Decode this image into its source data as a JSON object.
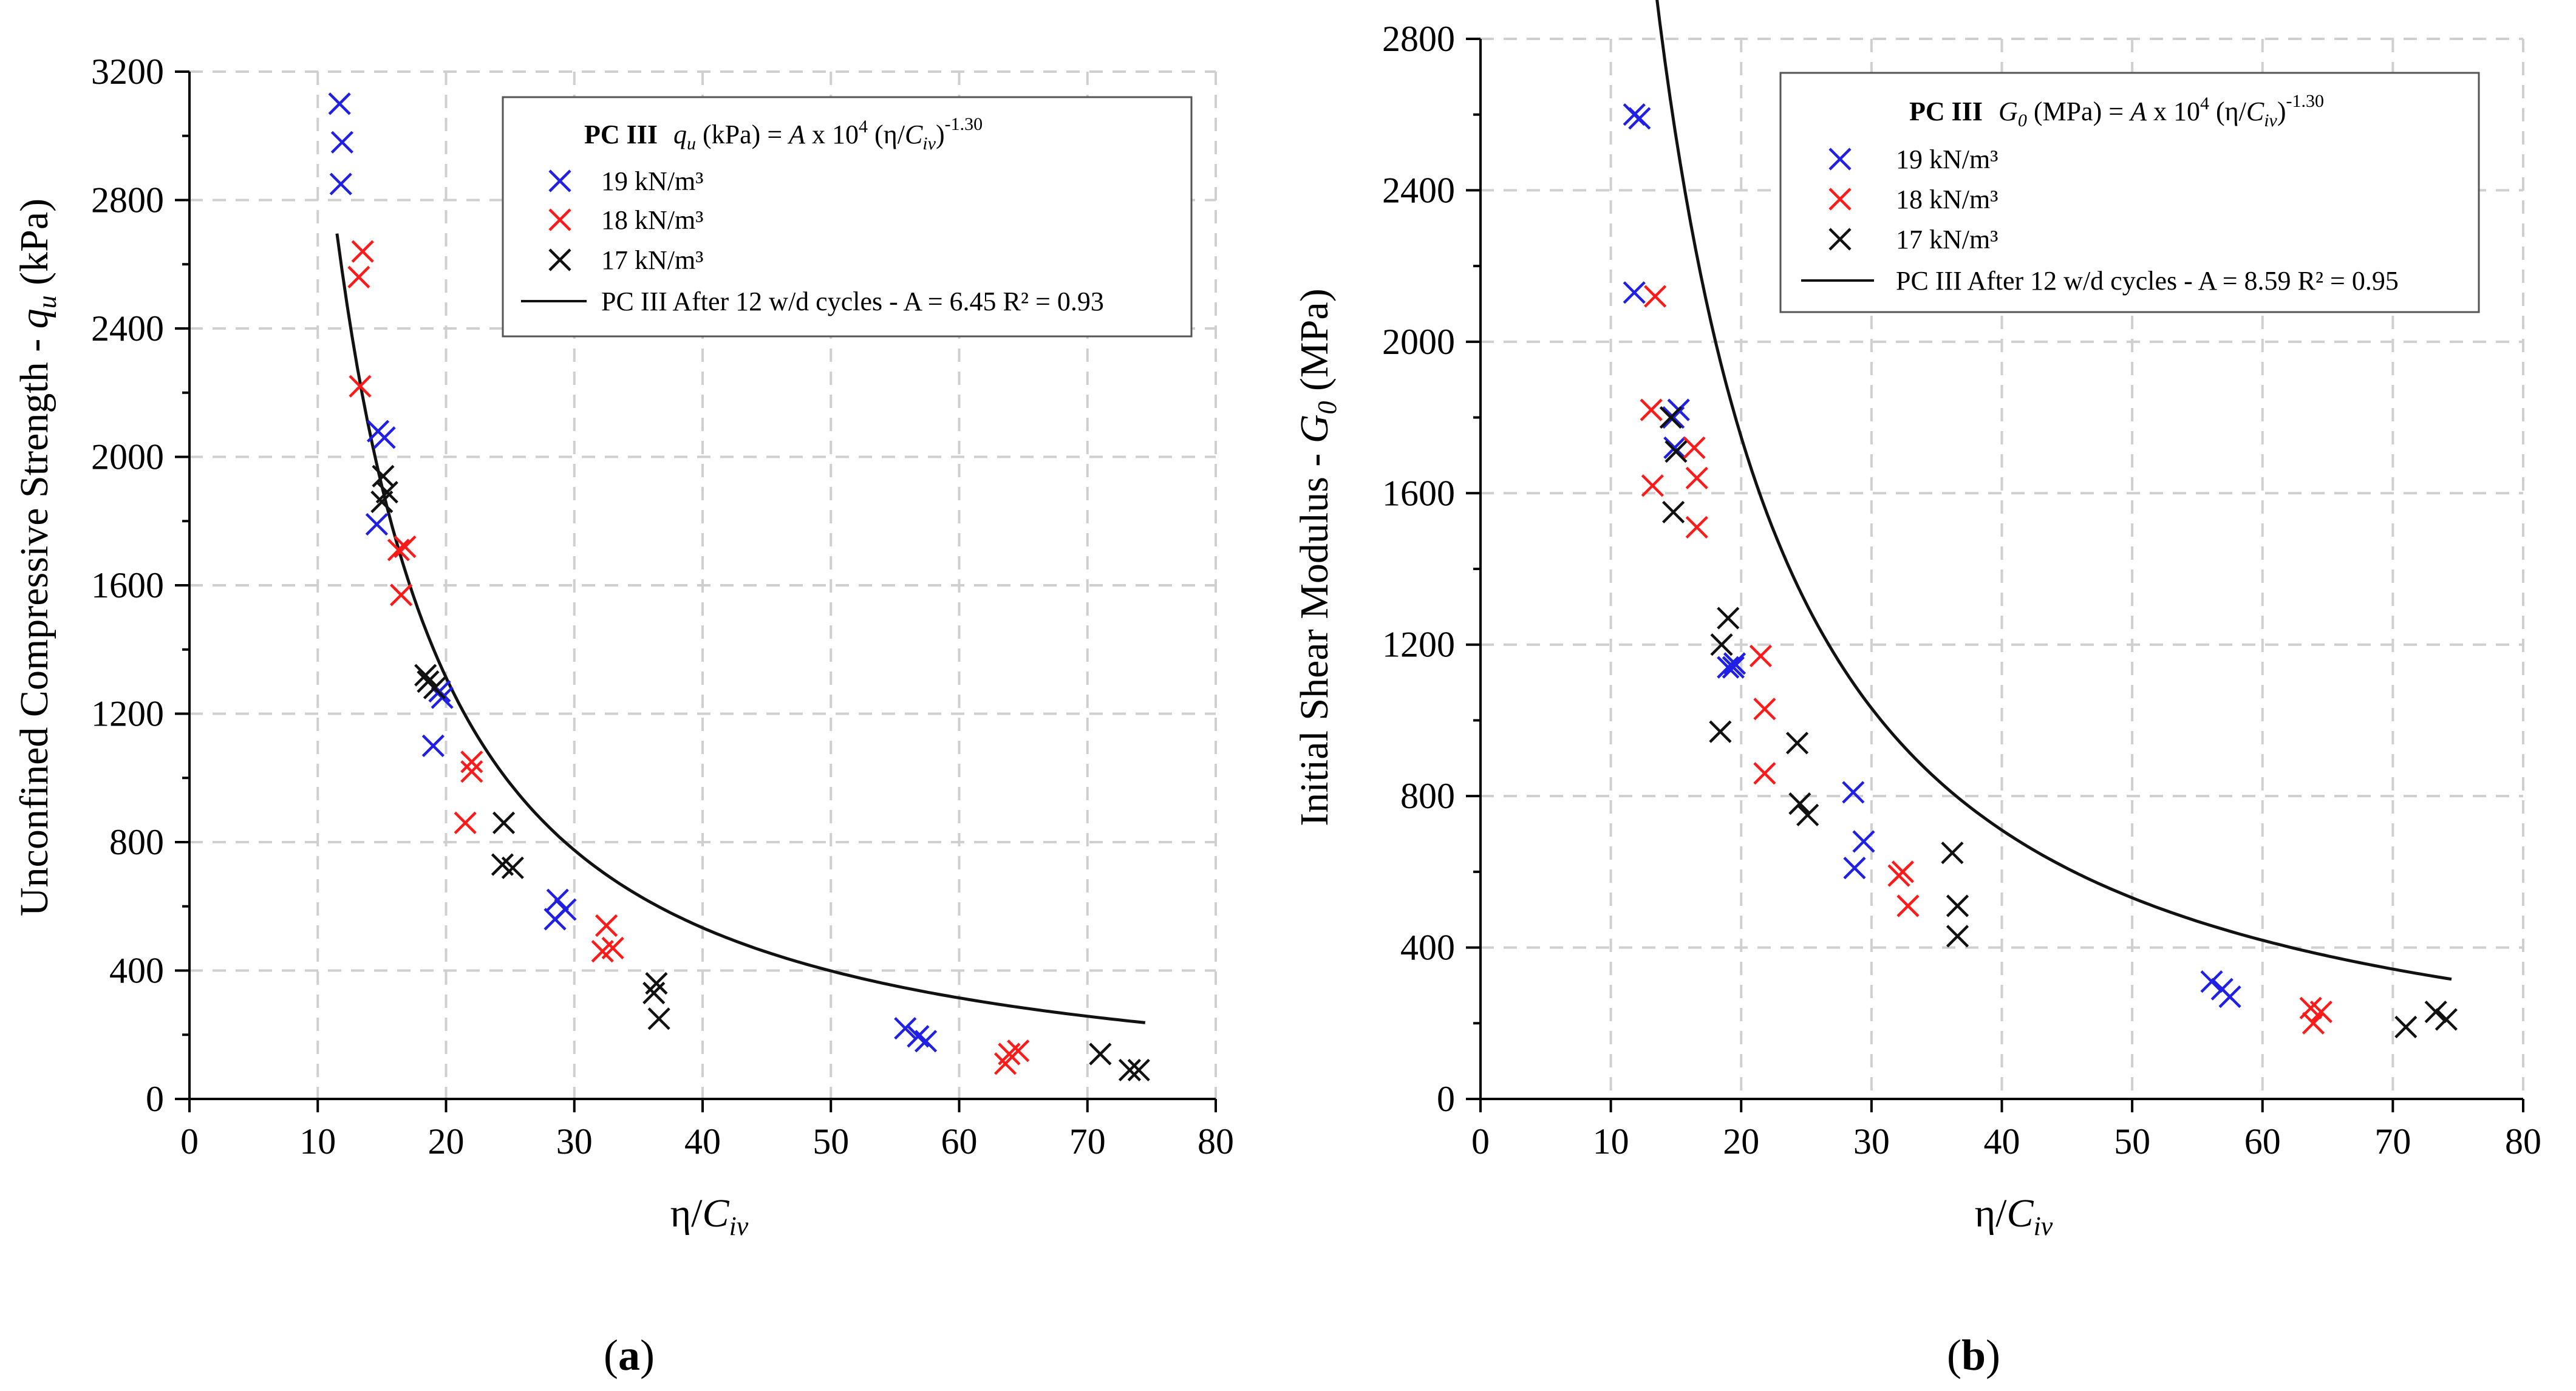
{
  "colors": {
    "19 kN/m³": "#1f1fe6",
    "18 kN/m³": "#ff1a1a",
    "17 kN/m³": "#111111",
    "fit": "#111111",
    "grid": "#cfcfcf"
  },
  "chart_data": [
    {
      "type": "scatter",
      "panel_label": "(a)",
      "panel_label_parts": [
        "(",
        "a",
        ")"
      ],
      "ylabel_parts": [
        "Unconfined Compressive Strength - ",
        "q",
        "u",
        " (kPa)"
      ],
      "xlabel_parts": [
        "η/",
        "C",
        "iv"
      ],
      "xlim": [
        0,
        80
      ],
      "ylim": [
        0,
        3200
      ],
      "x_ticks": [
        0,
        10,
        20,
        30,
        40,
        50,
        60,
        70,
        80
      ],
      "y_ticks": [
        0,
        400,
        800,
        1200,
        1600,
        2000,
        2400,
        2800,
        3200
      ],
      "grid": true,
      "legend_position": "top-right",
      "legend": {
        "title_parts": [
          "PC III",
          "q",
          "u",
          " (kPa) = ",
          "A",
          " x 10",
          "4",
          " (η/",
          "C",
          "iv",
          ")",
          "-1.30"
        ],
        "entries": [
          "19 kN/m³",
          "18 kN/m³",
          "17 kN/m³",
          "PC III After 12 w/d cycles - A = 6.45  R² =  0.93"
        ]
      },
      "fit": {
        "A": 6.45,
        "exponent": -1.3,
        "x_range": [
          11.5,
          74.5
        ]
      },
      "series": [
        {
          "name": "19 kN/m³",
          "color_key": "19 kN/m³",
          "points": [
            [
              11.7,
              3100
            ],
            [
              11.9,
              2980
            ],
            [
              11.8,
              2850
            ],
            [
              14.7,
              2080
            ],
            [
              15.2,
              2060
            ],
            [
              14.6,
              1790
            ],
            [
              19.5,
              1270
            ],
            [
              19.7,
              1250
            ],
            [
              19.0,
              1100
            ],
            [
              28.7,
              620
            ],
            [
              29.3,
              590
            ],
            [
              28.5,
              560
            ],
            [
              55.8,
              220
            ],
            [
              56.8,
              195
            ],
            [
              57.4,
              180
            ]
          ]
        },
        {
          "name": "18 kN/m³",
          "color_key": "18 kN/m³",
          "points": [
            [
              13.5,
              2640
            ],
            [
              13.2,
              2560
            ],
            [
              13.3,
              2220
            ],
            [
              16.3,
              1710
            ],
            [
              16.8,
              1720
            ],
            [
              16.5,
              1570
            ],
            [
              22.0,
              1050
            ],
            [
              22.0,
              1020
            ],
            [
              21.5,
              860
            ],
            [
              32.5,
              540
            ],
            [
              32.2,
              460
            ],
            [
              33.0,
              470
            ],
            [
              63.9,
              140
            ],
            [
              64.6,
              150
            ],
            [
              63.6,
              110
            ]
          ]
        },
        {
          "name": "17 kN/m³",
          "color_key": "17 kN/m³",
          "points": [
            [
              15.1,
              1940
            ],
            [
              15.4,
              1890
            ],
            [
              15.0,
              1860
            ],
            [
              18.4,
              1320
            ],
            [
              18.6,
              1300
            ],
            [
              19.1,
              1280
            ],
            [
              24.5,
              860
            ],
            [
              24.4,
              730
            ],
            [
              25.2,
              720
            ],
            [
              36.4,
              360
            ],
            [
              36.2,
              330
            ],
            [
              36.6,
              250
            ],
            [
              71.0,
              140
            ],
            [
              73.3,
              90
            ],
            [
              74.0,
              90
            ]
          ]
        }
      ]
    },
    {
      "type": "scatter",
      "panel_label": "(b)",
      "panel_label_parts": [
        "(",
        "b",
        ")"
      ],
      "ylabel_parts": [
        "Initial Shear Modulus - ",
        "G",
        "0",
        " (MPa)"
      ],
      "xlabel_parts": [
        "η/",
        "C",
        "iv"
      ],
      "xlim": [
        0,
        80
      ],
      "ylim": [
        0,
        2800
      ],
      "x_ticks": [
        0,
        10,
        20,
        30,
        40,
        50,
        60,
        70,
        80
      ],
      "y_ticks": [
        0,
        400,
        800,
        1200,
        1600,
        2000,
        2400,
        2800
      ],
      "grid": true,
      "legend_position": "top-right",
      "legend": {
        "title_parts": [
          "PC III",
          "G",
          "0",
          " (MPa) = ",
          "A",
          " x 10",
          "4",
          " (η/",
          "C",
          "iv",
          ")",
          "-1.30"
        ],
        "entries": [
          "19 kN/m³",
          "18 kN/m³",
          "17 kN/m³",
          "PC III  After 12 w/d cycles - A = 8.59  R² =  0.95"
        ]
      },
      "fit": {
        "A": 8.59,
        "exponent": -1.3,
        "x_range": [
          11.8,
          74.5
        ]
      },
      "series": [
        {
          "name": "19 kN/m³",
          "color_key": "19 kN/m³",
          "points": [
            [
              11.8,
              2600
            ],
            [
              12.2,
              2590
            ],
            [
              11.8,
              2130
            ],
            [
              14.8,
              1800
            ],
            [
              15.2,
              1820
            ],
            [
              14.9,
              1720
            ],
            [
              19.0,
              1140
            ],
            [
              19.4,
              1140
            ],
            [
              19.5,
              1150
            ],
            [
              28.6,
              810
            ],
            [
              29.4,
              680
            ],
            [
              28.7,
              610
            ],
            [
              56.1,
              310
            ],
            [
              56.9,
              290
            ],
            [
              57.5,
              270
            ]
          ]
        },
        {
          "name": "18 kN/m³",
          "color_key": "18 kN/m³",
          "points": [
            [
              13.4,
              2120
            ],
            [
              13.1,
              1820
            ],
            [
              13.2,
              1620
            ],
            [
              16.4,
              1720
            ],
            [
              16.6,
              1640
            ],
            [
              16.6,
              1510
            ],
            [
              21.5,
              1170
            ],
            [
              21.8,
              1030
            ],
            [
              21.8,
              860
            ],
            [
              32.4,
              600
            ],
            [
              32.1,
              590
            ],
            [
              32.8,
              510
            ],
            [
              63.7,
              240
            ],
            [
              64.5,
              230
            ],
            [
              63.9,
              200
            ]
          ]
        },
        {
          "name": "17 kN/m³",
          "color_key": "17 kN/m³",
          "points": [
            [
              14.6,
              1800
            ],
            [
              15.0,
              1710
            ],
            [
              14.8,
              1550
            ],
            [
              18.5,
              1200
            ],
            [
              19.0,
              1270
            ],
            [
              18.4,
              970
            ],
            [
              24.3,
              940
            ],
            [
              24.5,
              780
            ],
            [
              25.1,
              750
            ],
            [
              36.2,
              650
            ],
            [
              36.6,
              510
            ],
            [
              36.6,
              430
            ],
            [
              71.0,
              190
            ],
            [
              73.3,
              230
            ],
            [
              74.1,
              210
            ]
          ]
        }
      ]
    }
  ]
}
